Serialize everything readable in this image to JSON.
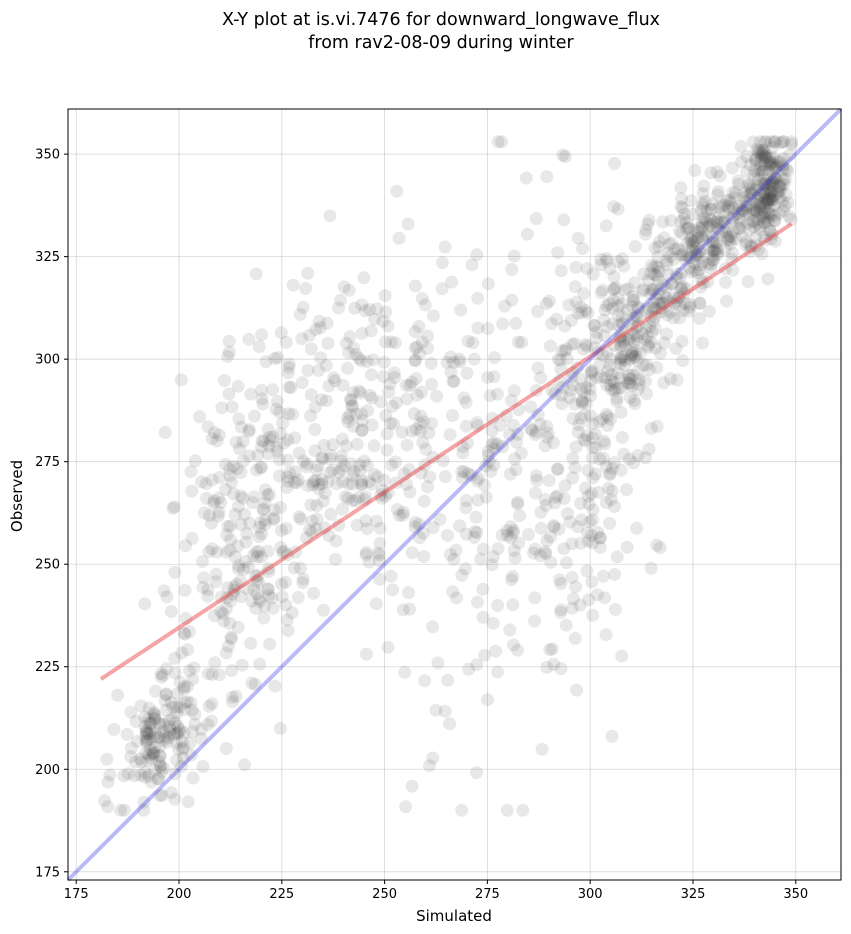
{
  "chart_data": {
    "type": "scatter",
    "title": [
      "X-Y plot at is.vi.7476 for downward_longwave_flux",
      "from rav2-08-09 during winter"
    ],
    "xlabel": "Simulated",
    "ylabel": "Observed",
    "xlim": [
      173,
      361
    ],
    "ylim": [
      173,
      361
    ],
    "xticks": [
      "175",
      "200",
      "225",
      "250",
      "275",
      "300",
      "325",
      "350"
    ],
    "yticks": [
      "175",
      "200",
      "225",
      "250",
      "275",
      "300",
      "325",
      "350"
    ],
    "grid": true,
    "legend": "none",
    "colors": {
      "points": "#404040",
      "fit_line": "#e8383a",
      "one_to_one": "#3a3ae8"
    },
    "point_clusters": [
      {
        "cx": 196,
        "cy": 208,
        "sx": 5,
        "sy": 8,
        "n": 150,
        "rho": 0.45
      },
      {
        "cx": 215,
        "cy": 258,
        "sx": 9,
        "sy": 24,
        "n": 240,
        "rho": 0.3
      },
      {
        "cx": 245,
        "cy": 283,
        "sx": 13,
        "sy": 21,
        "n": 300,
        "rho": 0.15
      },
      {
        "cx": 277,
        "cy": 272,
        "sx": 10,
        "sy": 32,
        "n": 180,
        "rho": 0.2
      },
      {
        "cx": 298,
        "cy": 272,
        "sx": 7,
        "sy": 30,
        "n": 160,
        "rho": 0.2
      },
      {
        "cx": 310,
        "cy": 305,
        "sx": 8,
        "sy": 14,
        "n": 250,
        "rho": 0.55
      },
      {
        "cx": 330,
        "cy": 330,
        "sx": 8,
        "sy": 10,
        "n": 220,
        "rho": 0.7
      },
      {
        "cx": 343,
        "cy": 342,
        "sx": 3,
        "sy": 7,
        "n": 170,
        "rho": 0.3
      }
    ],
    "fit_line": {
      "x": [
        181,
        349
      ],
      "y": [
        222,
        333
      ]
    },
    "one_to_one": {
      "x": [
        173,
        361
      ],
      "y": [
        173,
        361
      ]
    }
  }
}
